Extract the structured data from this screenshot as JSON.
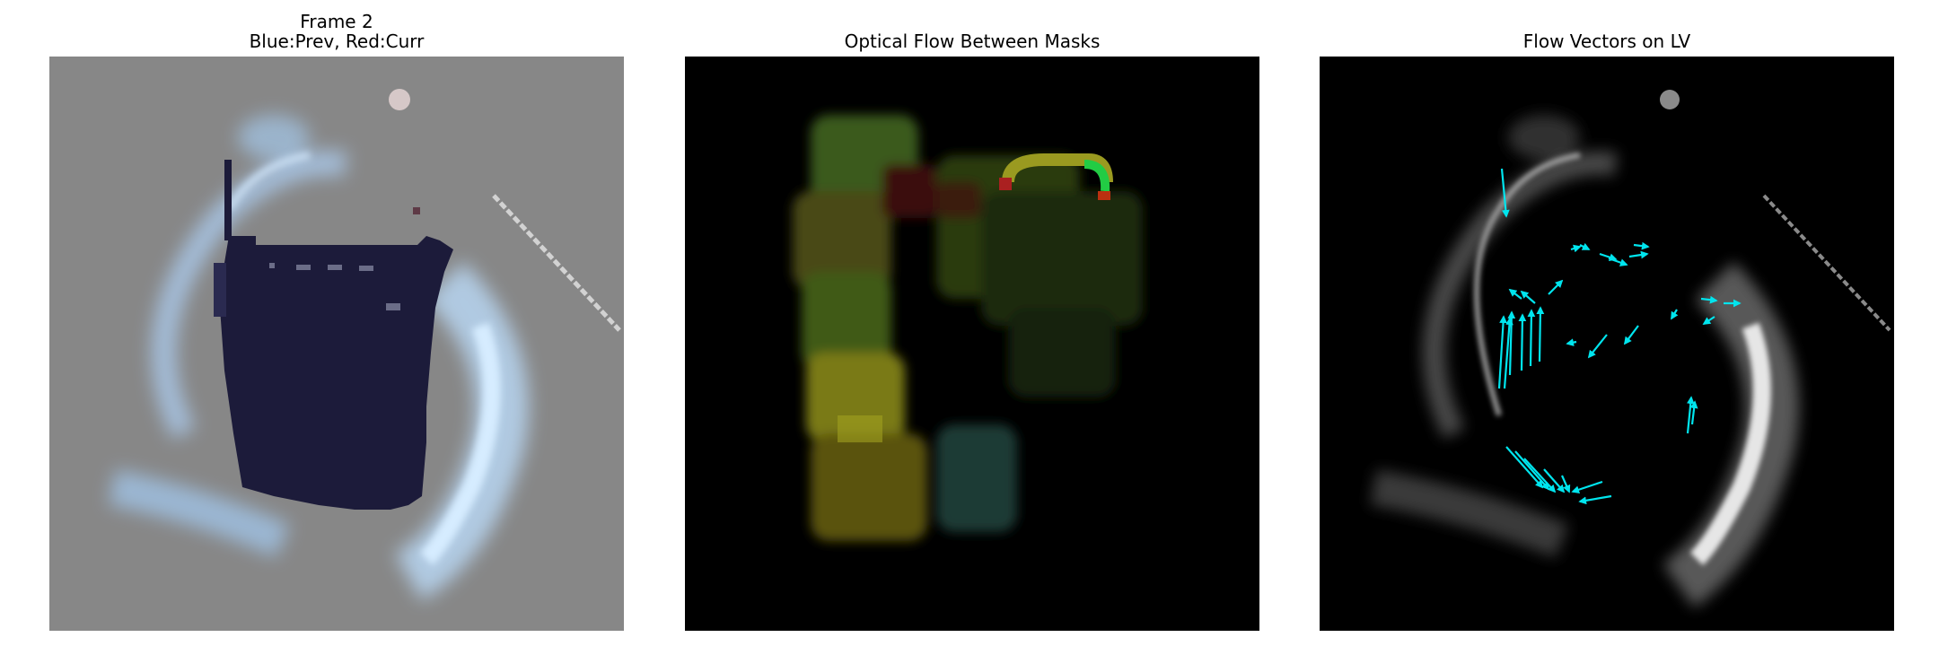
{
  "panels": [
    {
      "title_line1": "Frame 2",
      "title_line2": "Blue:Prev, Red:Curr"
    },
    {
      "title": "Optical Flow Between Masks"
    },
    {
      "title": "Flow Vectors on LV"
    }
  ],
  "colors": {
    "overlay_gray": "#878787",
    "prev_mask_dark": "#1c1b3a",
    "flow_yellow": "#8a8a10",
    "flow_green": "#2f5a1a",
    "vector_cyan": "#00e5ee"
  }
}
